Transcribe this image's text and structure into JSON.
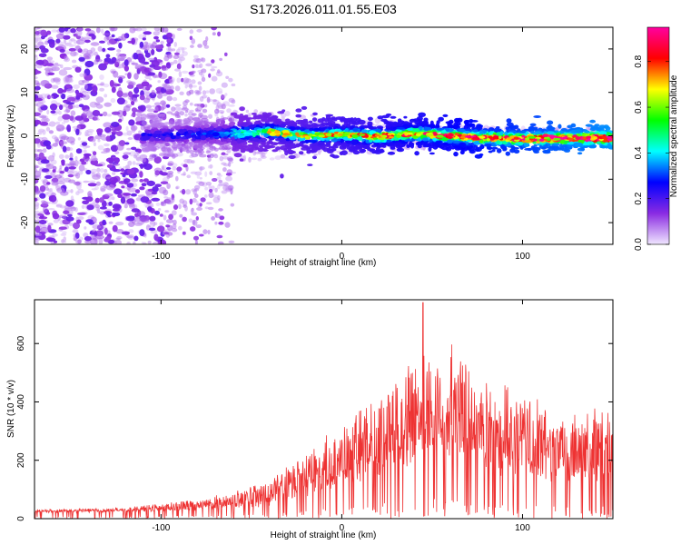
{
  "title": "S173.2026.011.01.55.E03",
  "chart_data": [
    {
      "type": "heatmap",
      "ylabel": "Frequency (Hz)",
      "xlabel": "Height of straight line (km)",
      "xlim": [
        -170,
        150
      ],
      "ylim": [
        -25,
        25
      ],
      "x_ticks": [
        -100,
        0,
        100
      ],
      "x_tick_labels": [
        "-100",
        "0",
        "100"
      ],
      "y_ticks": [
        -20,
        -10,
        0,
        10,
        20
      ],
      "y_tick_labels": [
        "-20",
        "-10",
        "0",
        "10",
        "20"
      ],
      "colorbar": {
        "label": "Normalized spectral amplitude",
        "range": [
          0,
          0.95
        ],
        "ticks": [
          0.0,
          0.2,
          0.4,
          0.6,
          0.8
        ],
        "tick_labels": [
          "0.0",
          "0.2",
          "0.4",
          "0.6",
          "0.8"
        ],
        "colors": [
          "#f0e6ff",
          "#8a2be2",
          "#0000ff",
          "#00ffff",
          "#00ff00",
          "#ffff00",
          "#ff0000",
          "#ff00a0"
        ]
      },
      "band": {
        "start_km": -110,
        "ridge_center_hz": [
          [
            -110,
            0.0
          ],
          [
            -90,
            0.3
          ],
          [
            -60,
            0.5
          ],
          [
            -40,
            1.0
          ],
          [
            -20,
            0.0
          ],
          [
            0,
            0.3
          ],
          [
            20,
            -0.2
          ],
          [
            40,
            0.5
          ],
          [
            60,
            0.0
          ],
          [
            80,
            -0.5
          ],
          [
            100,
            -0.7
          ],
          [
            120,
            -0.6
          ],
          [
            150,
            -0.5
          ]
        ]
      }
    },
    {
      "type": "line",
      "ylabel": "SNR (10 * v/v)",
      "xlabel": "Height of straight line (km)",
      "xlim": [
        -170,
        150
      ],
      "ylim": [
        0,
        750
      ],
      "x_ticks": [
        -100,
        0,
        100
      ],
      "x_tick_labels": [
        "-100",
        "0",
        "100"
      ],
      "y_ticks": [
        0,
        200,
        400,
        600
      ],
      "y_tick_labels": [
        "0",
        "200",
        "400",
        "600"
      ],
      "color": "#ee3333",
      "envelope": [
        [
          -170,
          30
        ],
        [
          -120,
          35
        ],
        [
          -80,
          60
        ],
        [
          -60,
          80
        ],
        [
          -40,
          120
        ],
        [
          -20,
          200
        ],
        [
          0,
          280
        ],
        [
          20,
          380
        ],
        [
          40,
          500
        ],
        [
          60,
          520
        ],
        [
          80,
          420
        ],
        [
          100,
          380
        ],
        [
          120,
          320
        ],
        [
          150,
          330
        ]
      ],
      "peak": {
        "x": 45,
        "y": 740
      }
    }
  ]
}
